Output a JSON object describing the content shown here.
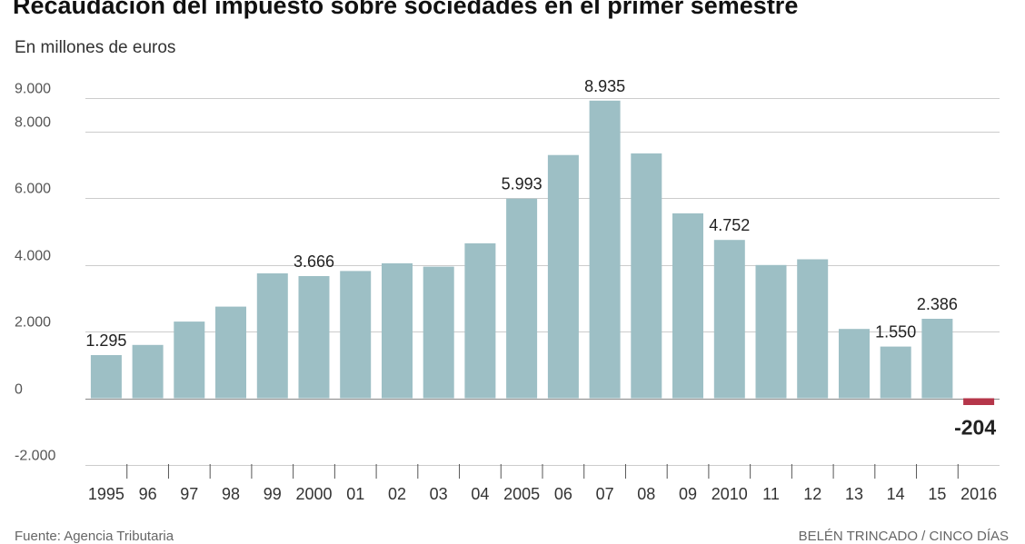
{
  "chart_data": {
    "type": "bar",
    "title": "Recaudación del impuesto sobre sociedades en el primer semestre",
    "subtitle": "En millones de euros",
    "categories": [
      "1995",
      "96",
      "97",
      "98",
      "99",
      "2000",
      "01",
      "02",
      "03",
      "04",
      "2005",
      "06",
      "07",
      "08",
      "09",
      "2010",
      "11",
      "12",
      "13",
      "14",
      "15",
      "2016"
    ],
    "values": [
      1295,
      1600,
      2300,
      2750,
      3750,
      3666,
      3820,
      4050,
      3950,
      4650,
      5993,
      7300,
      8935,
      7350,
      5550,
      4752,
      4000,
      4170,
      2080,
      1550,
      2386,
      -204
    ],
    "labels": {
      "0": "1.295",
      "5": "3.666",
      "10": "5.993",
      "12": "8.935",
      "15": "4.752",
      "19": "1.550",
      "20": "2.386",
      "21": "-204"
    },
    "yticks": [
      {
        "value": 9000,
        "label": "9.000"
      },
      {
        "value": 8000,
        "label": "8.000"
      },
      {
        "value": 6000,
        "label": "6.000"
      },
      {
        "value": 4000,
        "label": "4.000"
      },
      {
        "value": 2000,
        "label": "2.000"
      },
      {
        "value": 0,
        "label": "0"
      },
      {
        "value": -2000,
        "label": "-2.000"
      }
    ],
    "ylim": [
      -2000,
      9000
    ],
    "grid": true,
    "colors": {
      "positive": "#9dbfc5",
      "negative": "#b5364a",
      "grid": "#cccccc",
      "axis": "#888888"
    }
  },
  "footer": {
    "source": "Fuente: Agencia Tributaria",
    "credit": "BELÉN TRINCADO / CINCO DÍAS"
  }
}
